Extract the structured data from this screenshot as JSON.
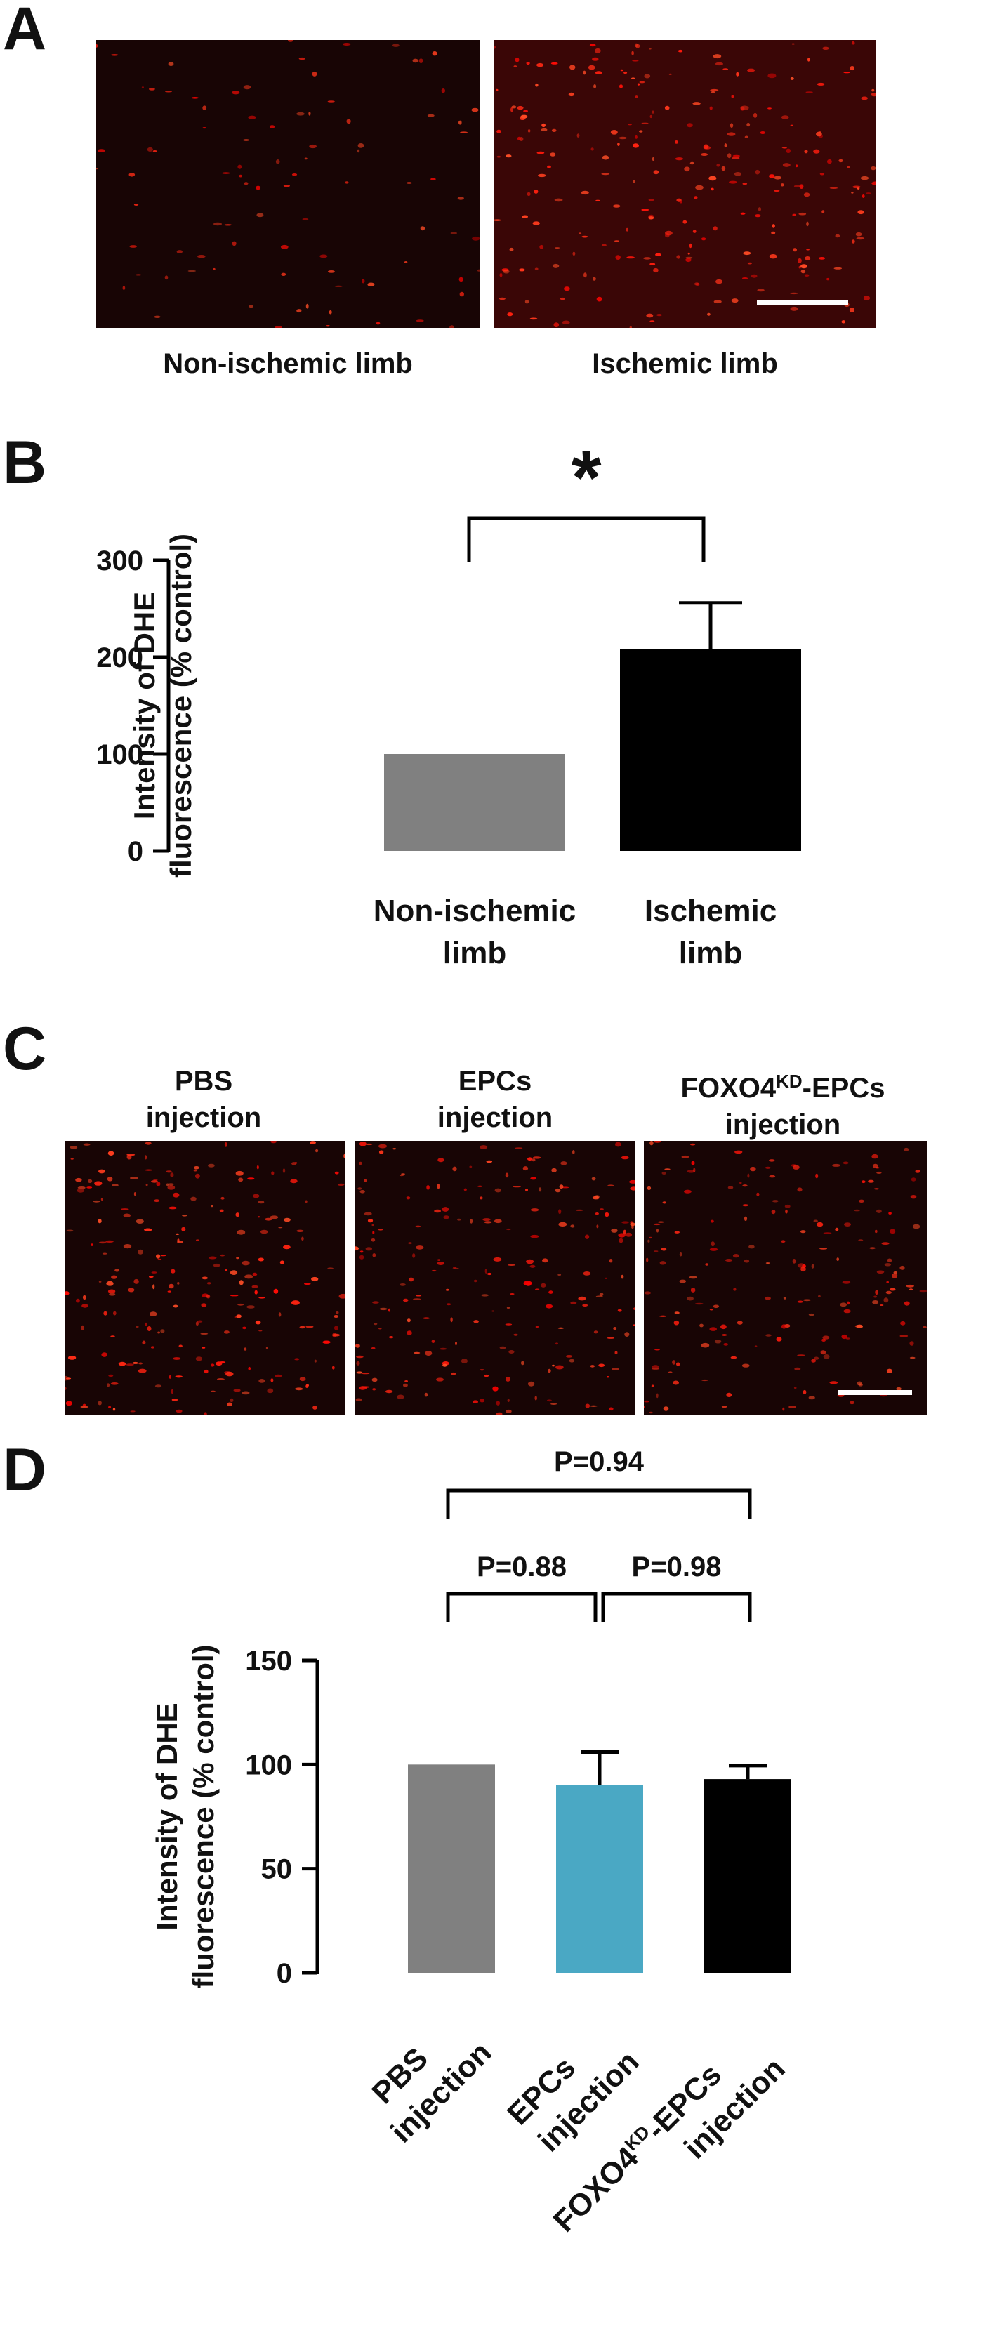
{
  "panels": {
    "a": {
      "letter": "A",
      "image_labels": [
        "Non-ischemic limb",
        "Ischemic limb"
      ]
    },
    "b": {
      "letter": "B"
    },
    "c": {
      "letter": "C",
      "image_labels": [
        {
          "line1": "PBS",
          "line2": "injection"
        },
        {
          "line1": "EPCs",
          "line2": "injection"
        },
        {
          "line1_main": "FOXO4",
          "line1_sup": "KD",
          "line1_tail": "-EPCs",
          "line2": "injection"
        }
      ]
    },
    "d": {
      "letter": "D"
    }
  },
  "chart_data": [
    {
      "panel": "B",
      "type": "bar",
      "ylabel_line1": "Intensity of DHE",
      "ylabel_line2": "fluorescence (% control)",
      "categories": [
        {
          "line1": "Non-ischemic",
          "line2": "limb"
        },
        {
          "line1": "Ischemic",
          "line2": "limb"
        }
      ],
      "values": [
        100,
        208
      ],
      "errors": [
        0,
        48
      ],
      "colors": [
        "#808080",
        "#000000"
      ],
      "ylim": [
        0,
        300
      ],
      "yticks": [
        "0",
        "100",
        "200",
        "300"
      ],
      "significance": "*"
    },
    {
      "panel": "D",
      "type": "bar",
      "ylabel_line1": "Intensity of DHE",
      "ylabel_line2": "fluorescence (% control)",
      "categories": [
        {
          "line1": "PBS",
          "line2": "injection"
        },
        {
          "line1": "EPCs",
          "line2": "injection"
        },
        {
          "line1_main": "FOXO4",
          "line1_sup": "KD",
          "line1_tail": "-EPCs",
          "line2": "injection"
        }
      ],
      "values": [
        100,
        90,
        93
      ],
      "errors": [
        0,
        16,
        6.5
      ],
      "colors": [
        "#808080",
        "#4aa8c4",
        "#000000"
      ],
      "ylim": [
        0,
        150
      ],
      "yticks": [
        "0",
        "50",
        "100",
        "150"
      ],
      "comparisons": [
        {
          "label": "P=0.88",
          "from": 0,
          "to": 1
        },
        {
          "label": "P=0.98",
          "from": 1,
          "to": 2
        },
        {
          "label": "P=0.94",
          "from": 0,
          "to": 2
        }
      ]
    }
  ]
}
